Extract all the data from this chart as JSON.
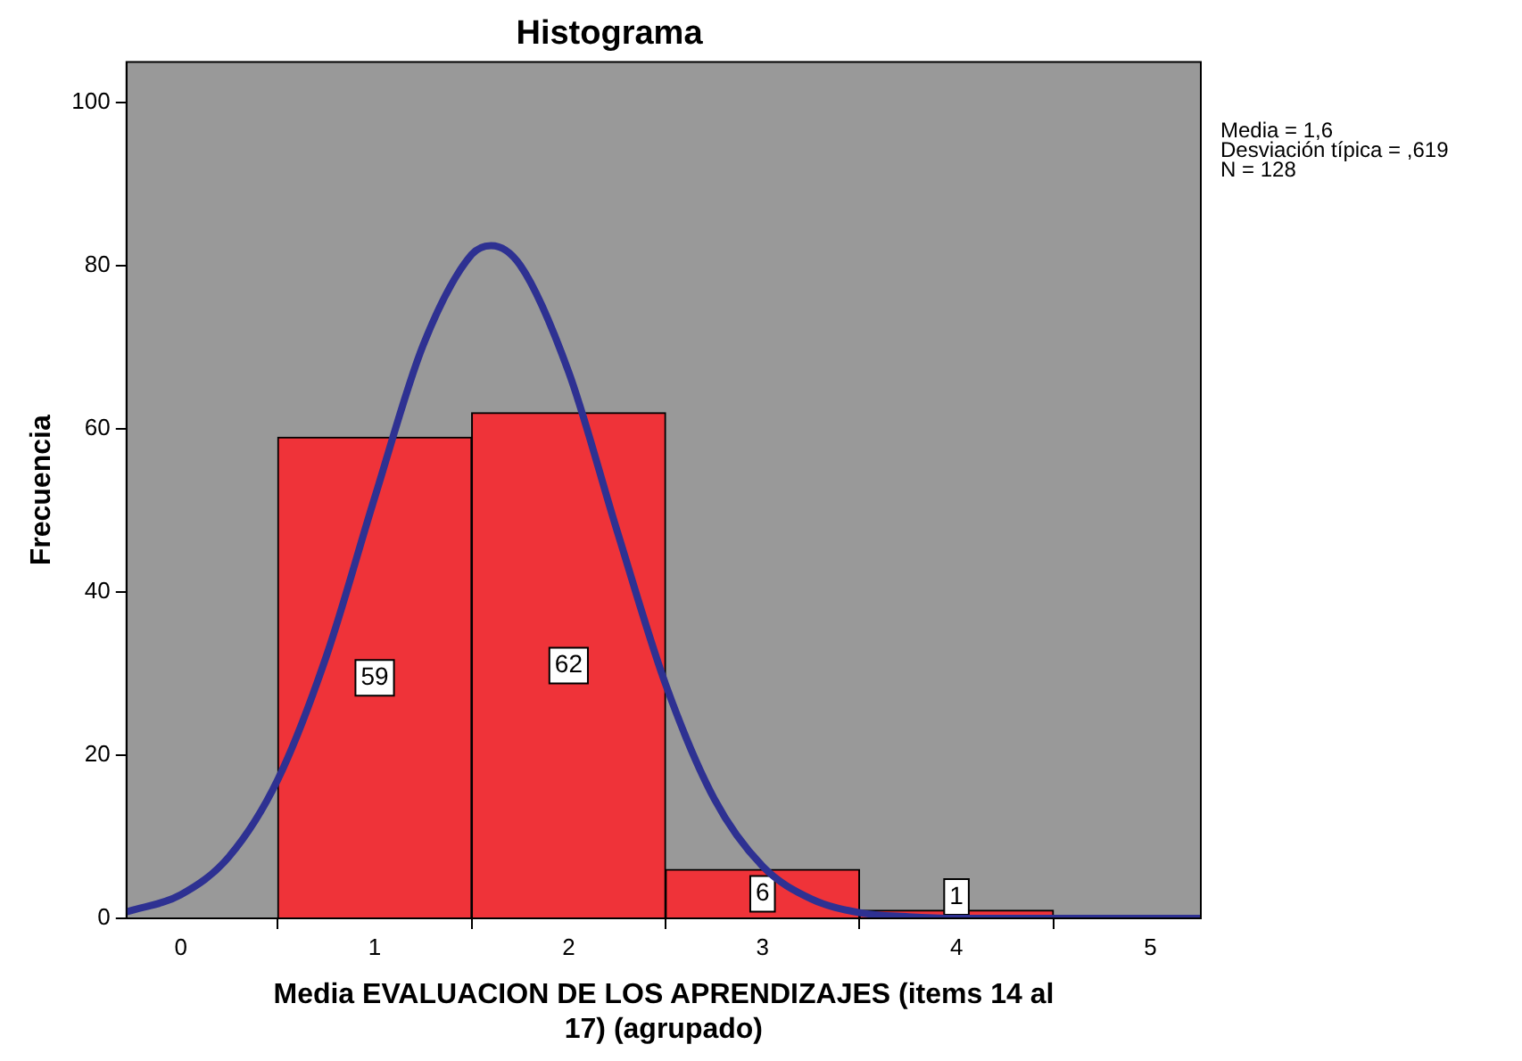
{
  "chart_data": {
    "type": "histogram",
    "title": "Histograma",
    "xlabel": "Media EVALUACION DE LOS APRENDIZAJES (items 14 al 17) (agrupado)",
    "ylabel": "Frecuencia",
    "bins": [
      0.5,
      1.5,
      2.5,
      3.5,
      4.5
    ],
    "series": [
      {
        "type": "histogram",
        "color": "#ef3339",
        "values": [
          59,
          62,
          6,
          1
        ],
        "value_labels": [
          "59",
          "62",
          "6",
          "1"
        ]
      },
      {
        "type": "line",
        "color": "#2e3192",
        "x": [
          -0.28,
          0,
          0.25,
          0.5,
          0.75,
          1,
          1.25,
          1.5,
          1.6,
          1.75,
          2,
          2.25,
          2.5,
          2.75,
          3,
          3.25,
          3.5,
          3.75,
          4,
          4.5,
          5.26
        ],
        "values": [
          0.8,
          2.9,
          7.6,
          17,
          32.1,
          51.6,
          70.3,
          81.4,
          82.5,
          80.1,
          67,
          47.5,
          28.7,
          14.7,
          6.4,
          2.4,
          0.7,
          0.2,
          0,
          0,
          0
        ]
      }
    ],
    "xlim": [
      -0.28,
      5.26
    ],
    "xticks": [
      0,
      1,
      2,
      3,
      4,
      5
    ],
    "ylim": [
      0,
      105
    ],
    "yticks": [
      0,
      20,
      40,
      60,
      80,
      100
    ],
    "grid": false,
    "legend": false,
    "marker": "none",
    "line_style": "solid",
    "annotations": [
      "Media = 1,6",
      "Desviación típica = ,619",
      "N = 128"
    ]
  }
}
